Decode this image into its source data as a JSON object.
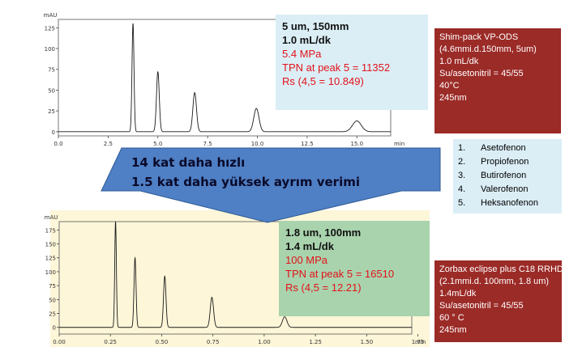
{
  "chart_data": [
    {
      "type": "line",
      "ylabel": "mAU",
      "xlabel": "min",
      "xlim": [
        0,
        16.7
      ],
      "ylim": [
        -5,
        135
      ],
      "xticks": [
        "0.0",
        "2.5",
        "5.0",
        "7.5",
        "10.0",
        "12.5",
        "15.0"
      ],
      "xtick_values": [
        0,
        2.5,
        5.0,
        7.5,
        10.0,
        12.5,
        15.0
      ],
      "yticks": [
        "0",
        "25",
        "50",
        "75",
        "100",
        "125"
      ],
      "ytick_values": [
        0,
        25,
        50,
        75,
        100,
        125
      ],
      "peaks": [
        {
          "t": 3.75,
          "h": 130,
          "w": 0.05
        },
        {
          "t": 5.0,
          "h": 72,
          "w": 0.07
        },
        {
          "t": 6.85,
          "h": 47,
          "w": 0.09
        },
        {
          "t": 9.95,
          "h": 28,
          "w": 0.13
        },
        {
          "t": 15.0,
          "h": 13,
          "w": 0.22
        }
      ]
    },
    {
      "type": "line",
      "ylabel": "mAU",
      "xlabel": "min",
      "xlim": [
        0,
        1.72
      ],
      "ylim": [
        -12,
        190
      ],
      "xticks": [
        "0.00",
        "0.25",
        "0.50",
        "0.75",
        "1.00",
        "1.25",
        "1.50",
        "1.75"
      ],
      "xtick_values": [
        0,
        0.25,
        0.5,
        0.75,
        1.0,
        1.25,
        1.5,
        1.75
      ],
      "yticks": [
        "0",
        "25",
        "50",
        "75",
        "100",
        "125",
        "150",
        "175"
      ],
      "ytick_values": [
        0,
        25,
        50,
        75,
        100,
        125,
        150,
        175
      ],
      "peaks": [
        {
          "t": 0.275,
          "h": 190,
          "w": 0.004
        },
        {
          "t": 0.37,
          "h": 125,
          "w": 0.005
        },
        {
          "t": 0.515,
          "h": 92,
          "w": 0.006
        },
        {
          "t": 0.745,
          "h": 54,
          "w": 0.008
        },
        {
          "t": 1.1,
          "h": 19,
          "w": 0.011
        }
      ]
    }
  ],
  "top_conditions": {
    "line1": "5 um, 150mm",
    "line2": "1.0 mL/dk",
    "line3": "5.4 MPa",
    "line4": "TPN at peak 5 = 11352",
    "line5": "Rs (4,5 = 10.849)"
  },
  "bottom_conditions": {
    "line1": "1.8 um, 100mm",
    "line2": "1.4 mL/dk",
    "line3": "100 MPa",
    "line4": "TPN at peak 5 = 16510",
    "line5": "Rs (4,5 = 12.21)"
  },
  "top_column": [
    "Shim-pack VP-ODS",
    "(4.6mmi.d.150mm, 5um)",
    "1.0 mL/dk",
    "Su/asetonitril = 45/55",
    "40°C",
    "245nm"
  ],
  "bottom_column": [
    "Zorbax eclipse plus C18 RRHD",
    "(2.1mmi.d. 100mm, 1.8 um)",
    "1.4mL/dk",
    "Su/asetonitril = 45/55",
    "60 ° C",
    "245nm"
  ],
  "compounds": [
    {
      "num": "1.",
      "name": "Asetofenon"
    },
    {
      "num": "2.",
      "name": "Propiofenon"
    },
    {
      "num": "3.",
      "name": "Butirofenon"
    },
    {
      "num": "4.",
      "name": "Valerofenon"
    },
    {
      "num": "5.",
      "name": "Heksanofenon"
    }
  ],
  "arrow": {
    "line1": "14 kat daha hızlı",
    "line2": "1.5 kat daha yüksek ayrım verimi"
  },
  "colors": {
    "arrow_fill": "#4f7fc4",
    "bottom_chart_bg": "#fdf6d8",
    "column_box": "#9b2b27",
    "accent_red": "#e3121a"
  }
}
